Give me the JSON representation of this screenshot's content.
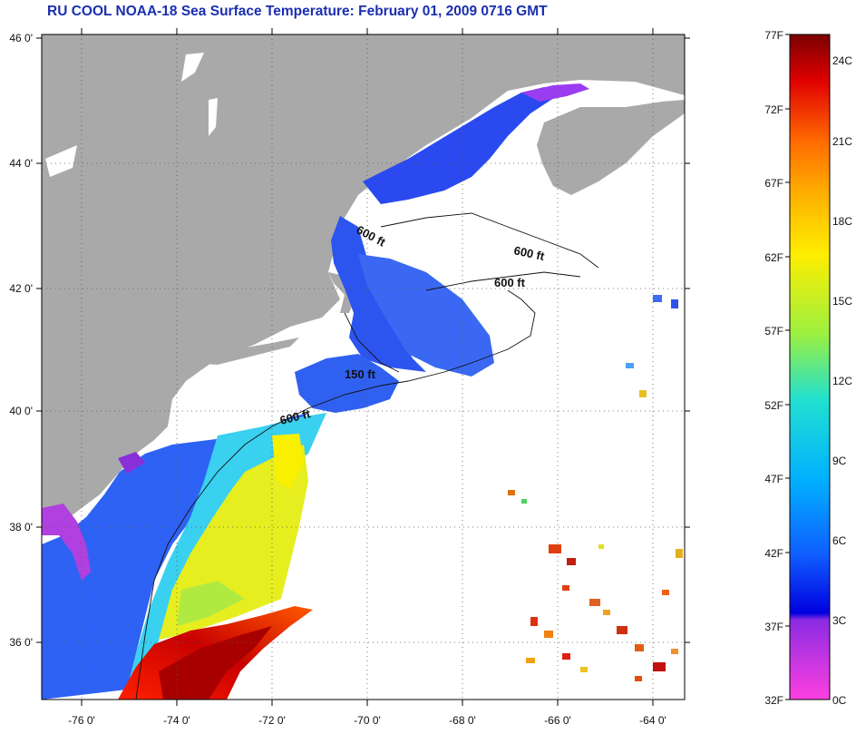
{
  "title": "RU COOL  NOAA-18  Sea Surface Temperature:  February 01, 2009 0716 GMT",
  "map": {
    "lon_range": [
      -77,
      -63
    ],
    "lat_range": [
      35,
      46
    ],
    "lon_ticks": [
      "-76 0'",
      "-74 0'",
      "-72 0'",
      "-70 0'",
      "-68 0'",
      "-66 0'",
      "-64 0'"
    ],
    "lat_ticks": [
      "46 0'",
      "44 0'",
      "42 0'",
      "40 0'",
      "38 0'",
      "36 0'"
    ],
    "contour_labels": [
      "600 ft",
      "600 ft",
      "600 ft",
      "150 ft",
      "600 ft"
    ],
    "colors": {
      "land": "#a9a9a9",
      "no_data": "#ffffff",
      "frame": "#000000"
    }
  },
  "colorbar": {
    "fahrenheit_labels": [
      "77F",
      "72F",
      "67F",
      "62F",
      "57F",
      "52F",
      "47F",
      "42F",
      "37F",
      "32F"
    ],
    "celsius_labels": [
      "24C",
      "21C",
      "18C",
      "15C",
      "12C",
      "9C",
      "6C",
      "3C",
      "0C"
    ],
    "colors": [
      "#7a0000",
      "#e00000",
      "#ff6a00",
      "#ffb000",
      "#ffee00",
      "#9cf040",
      "#20e0d0",
      "#00b0ff",
      "#1040ff",
      "#0000e0",
      "#8a2be2",
      "#ff40e0"
    ]
  }
}
